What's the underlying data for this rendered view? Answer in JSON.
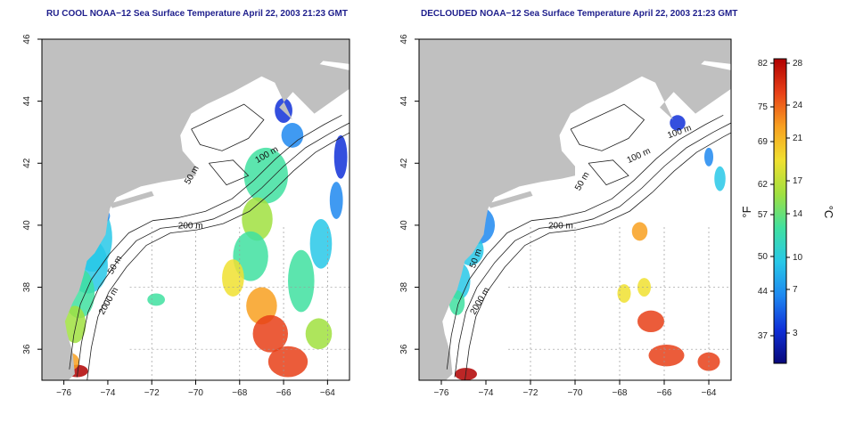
{
  "panels": [
    {
      "id": "left",
      "title": "RU COOL NOAA−12 Sea Surface Temperature April 22, 2003 21:23 GMT",
      "contour_labels": [
        "50 m",
        "100 m",
        "200 m",
        "50 m",
        "2000 m"
      ]
    },
    {
      "id": "right",
      "title": "DECLOUDED NOAA−12 Sea Surface Temperature April 22, 2003 21:23 GMT",
      "contour_labels": [
        "100 m",
        "100 m",
        "50 m",
        "200 m",
        "50 m",
        "2000 m"
      ]
    }
  ],
  "axes": {
    "lon_ticks": [
      "−76",
      "−74",
      "−72",
      "−70",
      "−68",
      "−66",
      "−64"
    ],
    "lat_ticks": [
      "36",
      "38",
      "40",
      "42",
      "44",
      "46"
    ],
    "lon_range": [
      -77,
      -63
    ],
    "lat_range": [
      35,
      46
    ]
  },
  "colorbar": {
    "unit_left": "°F",
    "unit_right": "°C",
    "fahrenheit_ticks": [
      "82",
      "75",
      "69",
      "62",
      "57",
      "50",
      "44",
      "37"
    ],
    "celsius_ticks": [
      "28",
      "24",
      "21",
      "17",
      "14",
      "10",
      "7",
      "3"
    ],
    "colors": [
      "#08087a",
      "#1030d8",
      "#1e88f0",
      "#28c8e8",
      "#40e0a0",
      "#a0e040",
      "#f0e030",
      "#f8a020",
      "#e84018",
      "#b00000"
    ]
  },
  "colors": {
    "land": "#c0c0c0",
    "ocean": "#ffffff",
    "contour": "#202020",
    "title": "#1e1e8c"
  }
}
